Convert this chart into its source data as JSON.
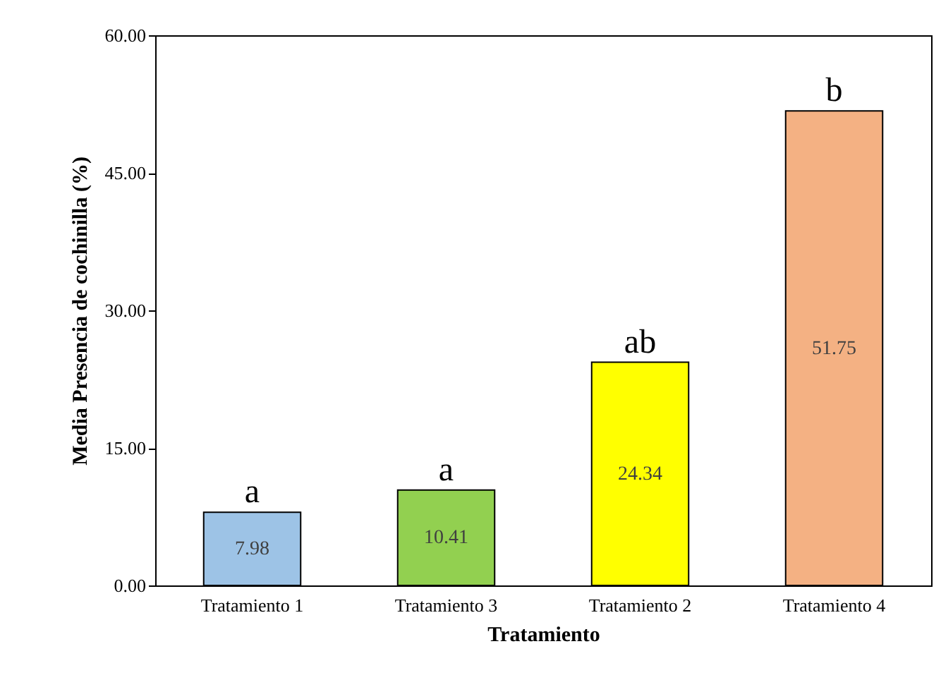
{
  "chart_data": {
    "type": "bar",
    "xlabel": "Tratamiento",
    "ylabel": "Media Presencia de cochinilla (%)",
    "categories": [
      "Tratamiento 1",
      "Tratamiento 3",
      "Tratamiento 2",
      "Tratamiento 4"
    ],
    "values": [
      7.98,
      10.41,
      24.34,
      51.75
    ],
    "colors": [
      "#9dc3e6",
      "#92d050",
      "#ffff00",
      "#f4b183"
    ],
    "data_labels": true,
    "ylim": [
      0,
      60
    ],
    "yticks": [
      {
        "value": 0,
        "label": "0.00"
      },
      {
        "value": 15,
        "label": "15.00"
      },
      {
        "value": 30,
        "label": "30.00"
      },
      {
        "value": 45,
        "label": "45.00"
      },
      {
        "value": 60,
        "label": "60.00"
      }
    ],
    "annotations": [
      {
        "text": "a",
        "x": "Tratamiento 1",
        "y": 7.98
      },
      {
        "text": "a",
        "x": "Tratamiento 3",
        "y": 10.41
      },
      {
        "text": "ab",
        "x": "Tratamiento 2",
        "y": 24.34
      },
      {
        "text": "b",
        "x": "Tratamiento 4",
        "y": 51.75
      }
    ],
    "grid": false
  }
}
